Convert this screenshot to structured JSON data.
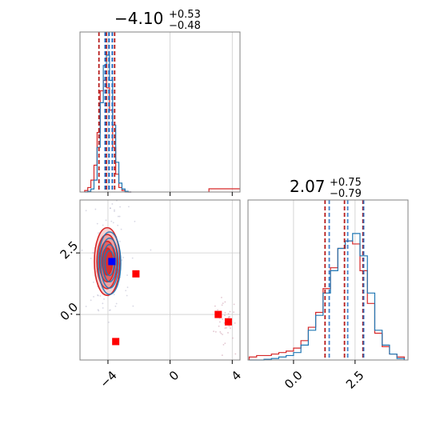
{
  "chart_data": {
    "type": "corner",
    "colors": {
      "primary": "#d62728",
      "secondary": "#1f77b4",
      "point_primary": "#ff0000",
      "point_secondary": "#0000ff",
      "grid": "#cccccc",
      "frame": "#808080"
    },
    "panels": {
      "hist_x": {
        "title_main": "−4.10",
        "title_sup": "+0.53",
        "title_sub": "−0.48",
        "xlim": [
          -5.8,
          4.5
        ],
        "grid_x": [
          -4,
          0,
          4
        ],
        "quantiles_primary": [
          -4.58,
          -4.1,
          -3.57
        ],
        "quantiles_secondary": [
          -4.18,
          -3.93,
          -3.72
        ],
        "bin_edges": [
          -5.5,
          -5.3,
          -5.1,
          -4.9,
          -4.7,
          -4.5,
          -4.3,
          -4.1,
          -3.9,
          -3.7,
          -3.5,
          -3.3,
          -3.1,
          -2.9,
          -2.7,
          -2.5
        ],
        "counts_secondary": [
          0,
          0.005,
          0.02,
          0.08,
          0.3,
          0.6,
          0.85,
          0.92,
          0.75,
          0.45,
          0.2,
          0.06,
          0.02,
          0.005,
          0
        ],
        "counts_primary": [
          0.01,
          0.03,
          0.08,
          0.18,
          0.4,
          0.68,
          0.75,
          0.7,
          0.55,
          0.3,
          0.12,
          0.03,
          0.01,
          0,
          0
        ],
        "tail_primary": {
          "x": [
            2.5,
            4.5
          ],
          "level": 0.02
        }
      },
      "hist_y": {
        "title_main": "2.07",
        "title_sup": "+0.75",
        "title_sub": "−0.79",
        "xlim": [
          -1.85,
          4.65
        ],
        "grid_x": [
          0.0,
          2.5
        ],
        "tick_labels": [
          "0.0",
          "2.5"
        ],
        "quantiles_primary": [
          1.28,
          2.07,
          2.82
        ],
        "quantiles_secondary": [
          1.45,
          2.2,
          2.85
        ],
        "bin_edges": [
          -1.8,
          -1.5,
          -1.2,
          -0.9,
          -0.6,
          -0.3,
          0.0,
          0.3,
          0.6,
          0.9,
          1.2,
          1.5,
          1.8,
          2.1,
          2.4,
          2.7,
          3.0,
          3.3,
          3.6,
          3.9,
          4.2,
          4.5
        ],
        "counts_secondary": [
          0,
          0,
          0.005,
          0.01,
          0.02,
          0.03,
          0.05,
          0.1,
          0.2,
          0.3,
          0.45,
          0.6,
          0.75,
          0.8,
          0.85,
          0.7,
          0.45,
          0.2,
          0.1,
          0.04,
          0.01
        ],
        "counts_primary": [
          0.02,
          0.03,
          0.03,
          0.04,
          0.05,
          0.06,
          0.08,
          0.13,
          0.22,
          0.32,
          0.48,
          0.62,
          0.75,
          0.8,
          0.78,
          0.6,
          0.38,
          0.18,
          0.09,
          0.04,
          0.02
        ]
      },
      "scatter_2d": {
        "xlim": [
          -5.8,
          4.5
        ],
        "ylim": [
          -1.85,
          4.65
        ],
        "grid_x": [
          -4,
          0,
          4
        ],
        "grid_y": [
          0.0,
          2.5
        ],
        "x_tick_labels": [
          "−4",
          "0",
          "4"
        ],
        "y_tick_labels": [
          "0.0",
          "2.5"
        ],
        "contour_center": [
          -4.05,
          2.15
        ],
        "contour_spread": [
          0.6,
          1.1
        ],
        "contour_levels": [
          1.0,
          1.5,
          2.0,
          2.5
        ],
        "markers_primary": [
          {
            "x": -2.2,
            "y": 1.65
          },
          {
            "x": -3.5,
            "y": -1.1
          },
          {
            "x": 3.1,
            "y": 0.0
          },
          {
            "x": 3.75,
            "y": -0.3
          }
        ],
        "markers_secondary": [
          {
            "x": -3.75,
            "y": 2.15
          }
        ]
      }
    }
  }
}
